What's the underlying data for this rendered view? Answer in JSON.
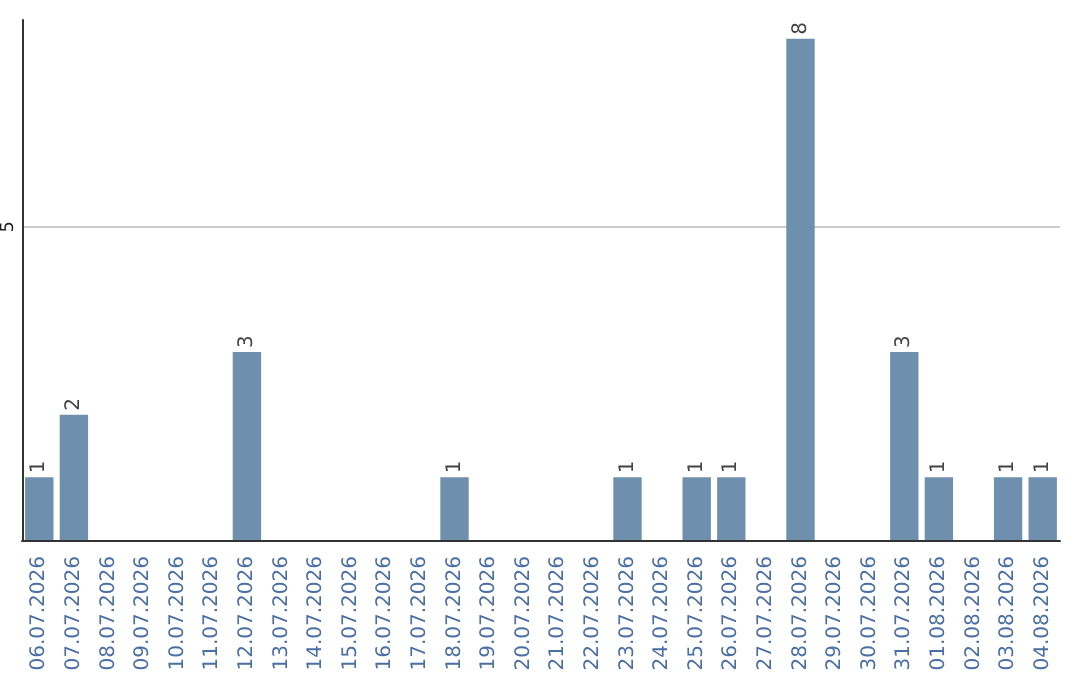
{
  "chart_data": {
    "type": "bar",
    "categories": [
      "06.07.2026",
      "07.07.2026",
      "08.07.2026",
      "09.07.2026",
      "10.07.2026",
      "11.07.2026",
      "12.07.2026",
      "13.07.2026",
      "14.07.2026",
      "15.07.2026",
      "16.07.2026",
      "17.07.2026",
      "18.07.2026",
      "19.07.2026",
      "20.07.2026",
      "21.07.2026",
      "22.07.2026",
      "23.07.2026",
      "24.07.2026",
      "25.07.2026",
      "26.07.2026",
      "27.07.2026",
      "28.07.2026",
      "29.07.2026",
      "30.07.2026",
      "31.07.2026",
      "01.08.2026",
      "02.08.2026",
      "03.08.2026",
      "04.08.2026"
    ],
    "values": [
      1,
      2,
      0,
      0,
      0,
      0,
      3,
      0,
      0,
      0,
      0,
      0,
      1,
      0,
      0,
      0,
      0,
      1,
      0,
      1,
      1,
      0,
      8,
      0,
      0,
      3,
      1,
      0,
      1,
      1
    ],
    "value_labels": [
      "1",
      "2",
      null,
      null,
      null,
      null,
      "3",
      null,
      null,
      null,
      null,
      null,
      "1",
      null,
      null,
      null,
      null,
      "1",
      null,
      "1",
      "1",
      null,
      "8",
      null,
      null,
      "3",
      "1",
      null,
      "1",
      "1"
    ],
    "color": "#6e8fae",
    "ylim": [
      0,
      8.3
    ],
    "yticks": [
      5
    ],
    "grid": "y"
  }
}
